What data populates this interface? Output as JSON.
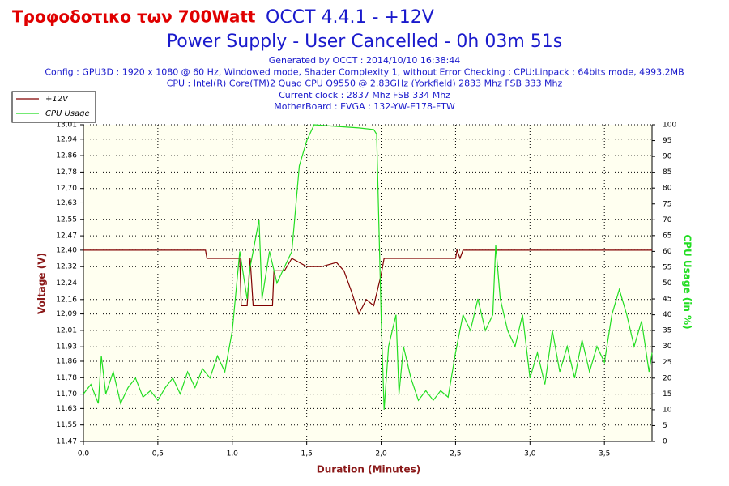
{
  "chart_data": {
    "type": "line",
    "annotation": "Τροφοδοτικο των 700Watt",
    "title": "OCCT 4.4.1 - +12V",
    "subtitle": "Power Supply - User Cancelled - 0h 03m 51s",
    "info_lines": [
      "Generated by OCCT : 2014/10/10 16:38:44",
      "Config : GPU3D : 1920 x 1080 @ 60 Hz, Windowed mode, Shader Complexity 1, without Error Checking ; CPU:Linpack : 64bits mode, 4993,2MB",
      "CPU : Intel(R) Core(TM)2 Quad CPU Q9550 @ 2.83GHz (Yorkfield) 2833 Mhz FSB 333 Mhz",
      "Current clock : 2837 Mhz FSB 334 Mhz",
      "MotherBoard : EVGA : 132-YW-E178-FTW"
    ],
    "x_label": "Duration (Minutes)",
    "y_label": "Voltage (V)",
    "y2_label": "CPU Usage (in %)",
    "xlim": [
      0,
      3.82
    ],
    "xticks": [
      {
        "value": 0,
        "label": "0,0"
      },
      {
        "value": 0.5,
        "label": "0,5"
      },
      {
        "value": 1,
        "label": "1,0"
      },
      {
        "value": 1.5,
        "label": "1,5"
      },
      {
        "value": 2,
        "label": "2,0"
      },
      {
        "value": 2.5,
        "label": "2,5"
      },
      {
        "value": 3,
        "label": "3,0"
      },
      {
        "value": 3.5,
        "label": "3,5"
      }
    ],
    "ylim": [
      11.47,
      13.01
    ],
    "yticks": [
      {
        "value": 11.47,
        "label": "11,47"
      },
      {
        "value": 11.55,
        "label": "11,55"
      },
      {
        "value": 11.63,
        "label": "11,63"
      },
      {
        "value": 11.7,
        "label": "11,70"
      },
      {
        "value": 11.78,
        "label": "11,78"
      },
      {
        "value": 11.86,
        "label": "11,86"
      },
      {
        "value": 11.93,
        "label": "11,93"
      },
      {
        "value": 12.01,
        "label": "12,01"
      },
      {
        "value": 12.09,
        "label": "12,09"
      },
      {
        "value": 12.16,
        "label": "12,16"
      },
      {
        "value": 12.24,
        "label": "12,24"
      },
      {
        "value": 12.32,
        "label": "12,32"
      },
      {
        "value": 12.4,
        "label": "12,40"
      },
      {
        "value": 12.47,
        "label": "12,47"
      },
      {
        "value": 12.55,
        "label": "12,55"
      },
      {
        "value": 12.63,
        "label": "12,63"
      },
      {
        "value": 12.7,
        "label": "12,70"
      },
      {
        "value": 12.78,
        "label": "12,78"
      },
      {
        "value": 12.86,
        "label": "12,86"
      },
      {
        "value": 12.94,
        "label": "12,94"
      },
      {
        "value": 13.01,
        "label": "13,01"
      }
    ],
    "y2lim": [
      0,
      100
    ],
    "y2ticks": [
      0,
      5,
      10,
      15,
      20,
      25,
      30,
      35,
      40,
      45,
      50,
      55,
      60,
      65,
      70,
      75,
      80,
      85,
      90,
      95,
      100
    ],
    "grid": true,
    "legend": "top-left",
    "series": [
      {
        "name": "+12V",
        "color": "#800000",
        "x": [
          0,
          0.82,
          0.83,
          1.05,
          1.06,
          1.1,
          1.12,
          1.14,
          1.15,
          1.27,
          1.28,
          1.35,
          1.4,
          1.5,
          1.6,
          1.7,
          1.75,
          1.8,
          1.85,
          1.9,
          1.95,
          2.0,
          2.02,
          2.5,
          2.51,
          2.53,
          2.55,
          3.82
        ],
        "values": [
          12.4,
          12.4,
          12.36,
          12.36,
          12.13,
          12.13,
          12.36,
          12.13,
          12.13,
          12.13,
          12.3,
          12.3,
          12.36,
          12.32,
          12.32,
          12.34,
          12.3,
          12.2,
          12.09,
          12.16,
          12.13,
          12.28,
          12.36,
          12.36,
          12.4,
          12.36,
          12.4,
          12.4
        ]
      },
      {
        "name": "CPU Usage",
        "color": "#22dd22",
        "axis": "y2",
        "x": [
          0,
          0.05,
          0.1,
          0.12,
          0.15,
          0.2,
          0.25,
          0.3,
          0.35,
          0.4,
          0.45,
          0.5,
          0.55,
          0.6,
          0.65,
          0.7,
          0.75,
          0.8,
          0.85,
          0.9,
          0.95,
          1.0,
          1.05,
          1.1,
          1.12,
          1.18,
          1.2,
          1.25,
          1.3,
          1.35,
          1.4,
          1.45,
          1.5,
          1.55,
          1.7,
          1.85,
          1.95,
          1.97,
          2.0,
          2.02,
          2.05,
          2.1,
          2.12,
          2.15,
          2.2,
          2.25,
          2.3,
          2.35,
          2.4,
          2.45,
          2.5,
          2.55,
          2.6,
          2.65,
          2.7,
          2.75,
          2.77,
          2.8,
          2.85,
          2.9,
          2.95,
          3.0,
          3.05,
          3.1,
          3.15,
          3.2,
          3.25,
          3.3,
          3.35,
          3.4,
          3.45,
          3.5,
          3.55,
          3.6,
          3.65,
          3.7,
          3.75,
          3.8,
          3.82
        ],
        "values": [
          15,
          18,
          12,
          27,
          15,
          22,
          12,
          17,
          20,
          14,
          16,
          13,
          17,
          20,
          15,
          22,
          17,
          23,
          20,
          27,
          22,
          35,
          60,
          45,
          55,
          70,
          45,
          60,
          50,
          55,
          60,
          87,
          95,
          100,
          99.5,
          99,
          98.5,
          97,
          40,
          10,
          30,
          40,
          15,
          30,
          20,
          13,
          16,
          13,
          16,
          14,
          28,
          40,
          35,
          45,
          35,
          40,
          62,
          45,
          35,
          30,
          40,
          20,
          28,
          18,
          35,
          22,
          30,
          20,
          32,
          22,
          30,
          25,
          40,
          48,
          40,
          30,
          38,
          22,
          28
        ]
      }
    ]
  }
}
